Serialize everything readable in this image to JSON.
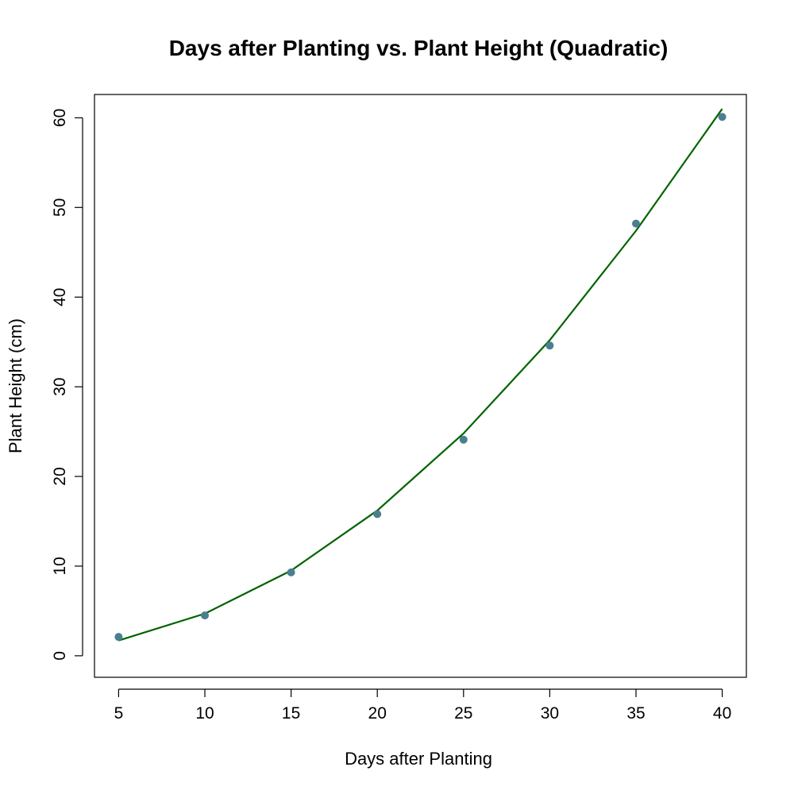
{
  "chart_data": {
    "type": "scatter",
    "title": "Days after Planting vs. Plant Height (Quadratic)",
    "xlabel": "Days after Planting",
    "ylabel": "Plant Height (cm)",
    "xlim": [
      3.6,
      41.4
    ],
    "ylim": [
      -2.4,
      62.6
    ],
    "x_ticks": [
      5,
      10,
      15,
      20,
      25,
      30,
      35,
      40
    ],
    "y_ticks": [
      0,
      10,
      20,
      30,
      40,
      50,
      60
    ],
    "grid": false,
    "legend": "none",
    "series": [
      {
        "kind": "points",
        "color": "#4a7f8f",
        "x": [
          5,
          10,
          15,
          20,
          25,
          30,
          35,
          40
        ],
        "y": [
          2.1,
          4.5,
          9.3,
          15.8,
          24.1,
          34.6,
          48.2,
          60.1
        ]
      },
      {
        "kind": "fitted-curve",
        "color": "#006400",
        "x": [
          5,
          10,
          15,
          20,
          25,
          30,
          35,
          40
        ],
        "y": [
          1.7,
          4.7,
          9.5,
          16.2,
          24.8,
          35.2,
          47.4,
          61.0
        ]
      }
    ]
  }
}
